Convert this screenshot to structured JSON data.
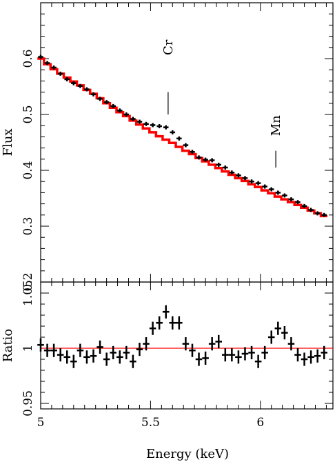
{
  "chart_data": [
    {
      "type": "line",
      "panel": "top",
      "ylabel": "Flux",
      "xlim": [
        5.0,
        6.33
      ],
      "ylim": [
        0.2,
        0.7
      ],
      "yticks": [
        0.2,
        0.3,
        0.4,
        0.5,
        0.6
      ],
      "grid": false,
      "series": [
        {
          "color": "#000000",
          "style": "data-with-errorbars",
          "x": [
            5.0,
            5.03,
            5.06,
            5.09,
            5.12,
            5.15,
            5.18,
            5.21,
            5.24,
            5.27,
            5.3,
            5.33,
            5.36,
            5.39,
            5.42,
            5.45,
            5.48,
            5.51,
            5.54,
            5.57,
            5.6,
            5.63,
            5.66,
            5.69,
            5.72,
            5.75,
            5.78,
            5.81,
            5.84,
            5.87,
            5.9,
            5.93,
            5.96,
            5.99,
            6.02,
            6.05,
            6.08,
            6.11,
            6.14,
            6.17,
            6.2,
            6.23,
            6.26,
            6.29
          ],
          "y": [
            0.603,
            0.592,
            0.584,
            0.573,
            0.563,
            0.556,
            0.551,
            0.545,
            0.536,
            0.528,
            0.522,
            0.515,
            0.507,
            0.5,
            0.492,
            0.487,
            0.483,
            0.481,
            0.479,
            0.477,
            0.468,
            0.457,
            0.445,
            0.433,
            0.423,
            0.419,
            0.418,
            0.41,
            0.405,
            0.396,
            0.391,
            0.386,
            0.38,
            0.377,
            0.371,
            0.366,
            0.36,
            0.355,
            0.348,
            0.343,
            0.336,
            0.329,
            0.323,
            0.32
          ]
        },
        {
          "color": "#ff0000",
          "style": "model-step",
          "x": [
            5.0,
            5.03,
            5.06,
            5.09,
            5.12,
            5.15,
            5.18,
            5.21,
            5.24,
            5.27,
            5.3,
            5.33,
            5.36,
            5.39,
            5.42,
            5.45,
            5.48,
            5.51,
            5.54,
            5.57,
            5.6,
            5.63,
            5.66,
            5.69,
            5.72,
            5.75,
            5.78,
            5.81,
            5.84,
            5.87,
            5.9,
            5.93,
            5.96,
            5.99,
            6.02,
            6.05,
            6.08,
            6.11,
            6.14,
            6.17,
            6.2,
            6.23,
            6.26,
            6.29
          ],
          "y": [
            0.6,
            0.59,
            0.581,
            0.573,
            0.566,
            0.559,
            0.552,
            0.544,
            0.537,
            0.529,
            0.52,
            0.512,
            0.504,
            0.497,
            0.489,
            0.482,
            0.475,
            0.468,
            0.461,
            0.455,
            0.449,
            0.442,
            0.435,
            0.429,
            0.422,
            0.416,
            0.41,
            0.404,
            0.398,
            0.392,
            0.386,
            0.381,
            0.375,
            0.37,
            0.364,
            0.359,
            0.353,
            0.348,
            0.343,
            0.338,
            0.333,
            0.328,
            0.323,
            0.318
          ]
        }
      ],
      "annotations": [
        {
          "text": "Cr",
          "x": 5.58,
          "y": 0.62
        },
        {
          "text": "Mn",
          "x": 6.07,
          "y": 0.48
        }
      ],
      "marker_lines": [
        {
          "x": 5.58,
          "y": [
            0.5,
            0.54
          ]
        },
        {
          "x": 6.07,
          "y": [
            0.405,
            0.435
          ]
        }
      ]
    },
    {
      "type": "line",
      "panel": "bottom",
      "xlabel": "Energy (keV)",
      "ylabel": "Ratio",
      "xlim": [
        5.0,
        6.33
      ],
      "ylim": [
        0.945,
        1.06
      ],
      "xticks": [
        5,
        5.5,
        6
      ],
      "yticks": [
        0.95,
        1,
        1.05
      ],
      "grid": false,
      "reference_line": {
        "y": 1.0,
        "color": "#ff0000"
      },
      "series": [
        {
          "color": "#000000",
          "style": "data-with-errorbars",
          "x": [
            5.0,
            5.03,
            5.06,
            5.09,
            5.12,
            5.15,
            5.18,
            5.21,
            5.24,
            5.27,
            5.3,
            5.33,
            5.36,
            5.39,
            5.42,
            5.45,
            5.48,
            5.51,
            5.54,
            5.57,
            5.6,
            5.63,
            5.66,
            5.69,
            5.72,
            5.75,
            5.78,
            5.81,
            5.84,
            5.87,
            5.9,
            5.93,
            5.96,
            5.99,
            6.02,
            6.05,
            6.08,
            6.11,
            6.14,
            6.17,
            6.2,
            6.23,
            6.26,
            6.29
          ],
          "y": [
            1.003,
            0.998,
            0.998,
            0.994,
            0.992,
            0.988,
            0.998,
            0.992,
            0.993,
            1.001,
            0.99,
            0.996,
            0.992,
            0.996,
            0.988,
            0.999,
            1.004,
            1.018,
            1.023,
            1.033,
            1.023,
            1.023,
            1.004,
            0.998,
            0.99,
            0.991,
            1.004,
            1.006,
            0.994,
            0.994,
            0.992,
            0.995,
            0.996,
            0.988,
            0.996,
            1.01,
            1.018,
            1.014,
            1.004,
            0.994,
            0.99,
            0.992,
            0.993,
            0.996
          ],
          "yerr": 0.006
        }
      ]
    }
  ]
}
